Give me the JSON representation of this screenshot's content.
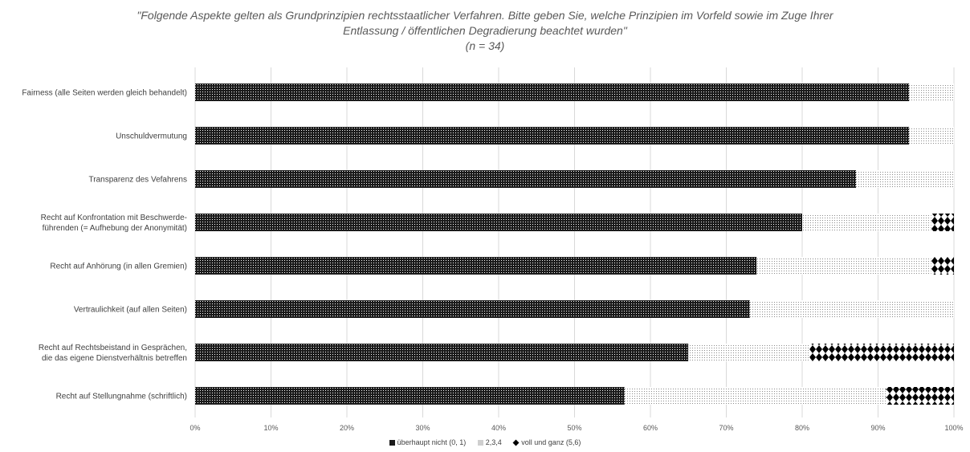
{
  "chart_data": {
    "type": "bar",
    "orientation": "horizontal",
    "stacked": true,
    "title_lines": [
      "\"Folgende Aspekte gelten als Grundprinzipien rechtsstaatlicher Verfahren. Bitte geben Sie, welche Prinzipien im Vorfeld sowie im Zuge Ihrer",
      "Entlassung / öffentlichen Degradierung beachtet wurden\"",
      "(n = 34)"
    ],
    "categories": [
      [
        "Fairness (alle Seiten werden gleich behandelt)"
      ],
      [
        "Unschuldvermutung"
      ],
      [
        "Transparenz des Vefahrens"
      ],
      [
        "Recht auf Konfrontation mit Beschwerde-",
        "führenden (= Aufhebung der Anonymität)"
      ],
      [
        "Recht auf Anhörung (in allen Gremien)"
      ],
      [
        "Vertraulichkeit (auf allen Seiten)"
      ],
      [
        "Recht auf Rechtsbeistand in Gesprächen,",
        "die das eigene Dienstverhältnis betreffen"
      ],
      [
        "Recht auf Stellungnahme (schriftlich)"
      ]
    ],
    "series": [
      {
        "name": "überhaupt nicht (0, 1)",
        "values": [
          94.1,
          94.1,
          87.1,
          80.0,
          74.0,
          73.1,
          65.0,
          56.6
        ],
        "color": "#1a1a1a"
      },
      {
        "name": "2,3,4",
        "values": [
          5.9,
          5.9,
          12.9,
          17.0,
          23.0,
          26.9,
          16.0,
          34.4
        ],
        "color": "#e6e6e6"
      },
      {
        "name": "voll und ganz (5,6)",
        "values": [
          0,
          0,
          0,
          3.0,
          3.0,
          0,
          19.0,
          9.0
        ],
        "color": "#000000"
      }
    ],
    "x_ticks": [
      "0%",
      "10%",
      "20%",
      "30%",
      "40%",
      "50%",
      "60%",
      "70%",
      "80%",
      "90%",
      "100%"
    ],
    "xlim": [
      0,
      100
    ],
    "grid": true,
    "legend_position": "bottom"
  }
}
